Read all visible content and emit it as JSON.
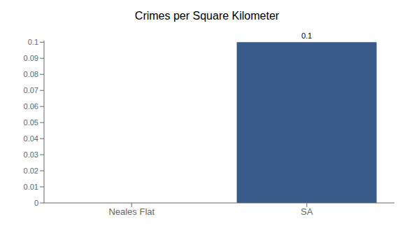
{
  "chart_data": {
    "type": "bar",
    "title": "Crimes per Square Kilometer",
    "categories": [
      "Neales Flat",
      "SA"
    ],
    "values": [
      0.0,
      0.1
    ],
    "color": "#3a5a8a",
    "ylim": [
      0,
      0.101
    ],
    "yticks": [
      0,
      0.01,
      0.02,
      0.03,
      0.04,
      0.05,
      0.06,
      0.07,
      0.08,
      0.09,
      0.1
    ],
    "grid": false,
    "data_labels": true
  }
}
